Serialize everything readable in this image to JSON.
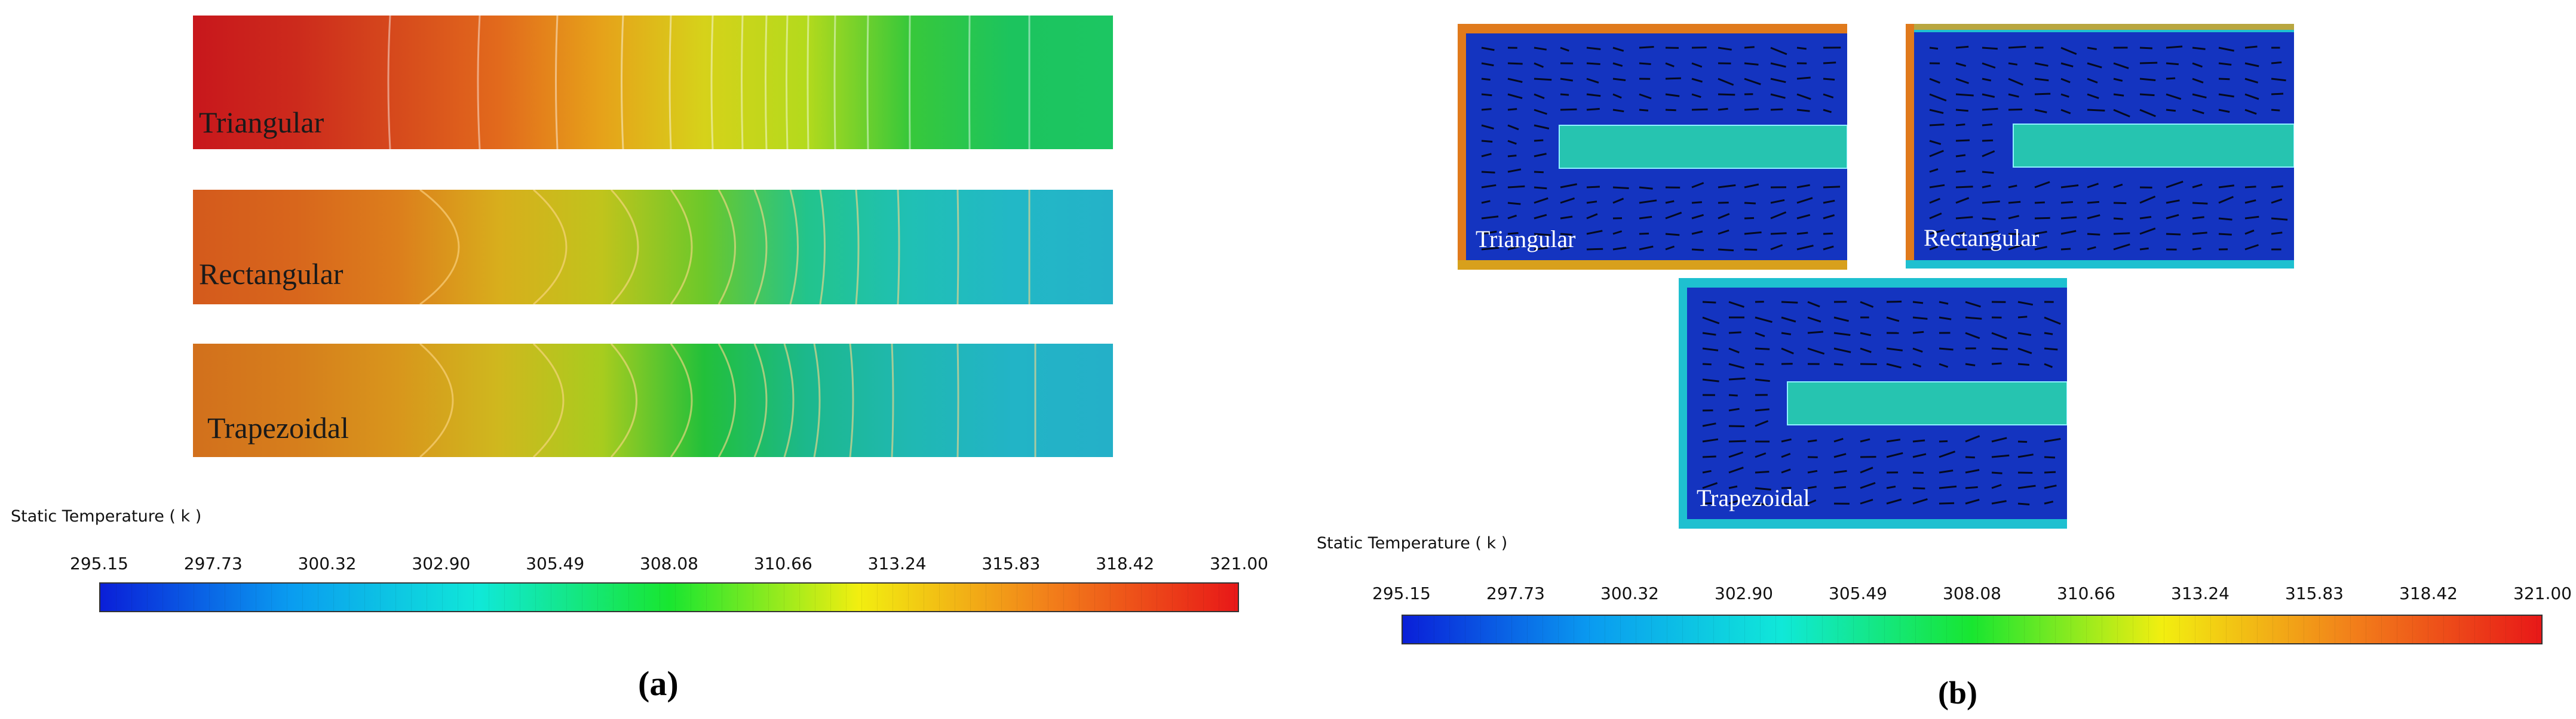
{
  "colors": {
    "scale": [
      "#0a1fd8",
      "#0a9cf0",
      "#10e8d8",
      "#18e630",
      "#f2ee10",
      "#f2801a",
      "#e81818"
    ],
    "strip_triangular": [
      "#c8171c",
      "#cc2a1c",
      "#d64a1c",
      "#e26a1c",
      "#e6a21a",
      "#d6d21a",
      "#b4da1c",
      "#38c83a",
      "#1cc45e",
      "#1cc662"
    ],
    "strip_rectangular": [
      "#d45a1c",
      "#d8661c",
      "#dc7e1c",
      "#d8ae1c",
      "#c0c41c",
      "#6cc82a",
      "#22c48c",
      "#20c0b4",
      "#22b8c6",
      "#24b2c8"
    ],
    "strip_trapezoidal": [
      "#d2701c",
      "#d67e1c",
      "#d8961c",
      "#cfb81e",
      "#a8cc1e",
      "#22c03a",
      "#1cb88c",
      "#20b8b2",
      "#22b4c6",
      "#24b0c8"
    ],
    "panel_body": "#1434c0",
    "fin": "#26c4b0"
  },
  "panel_a": {
    "strips": [
      {
        "label": "Triangular"
      },
      {
        "label": "Rectangular"
      },
      {
        "label": "Trapezoidal"
      }
    ],
    "colorbar": {
      "title": "Static Temperature ( k )",
      "ticks": [
        "295.15",
        "297.73",
        "300.32",
        "302.90",
        "305.49",
        "308.08",
        "310.66",
        "313.24",
        "315.83",
        "318.42",
        "321.00"
      ]
    },
    "caption": "(a)"
  },
  "panel_b": {
    "panels": [
      {
        "label": "Triangular"
      },
      {
        "label": "Rectangular"
      },
      {
        "label": "Trapezoidal"
      }
    ],
    "colorbar": {
      "title": "Static Temperature ( k )",
      "ticks": [
        "295.15",
        "297.73",
        "300.32",
        "302.90",
        "305.49",
        "308.08",
        "310.66",
        "313.24",
        "315.83",
        "318.42",
        "321.00"
      ]
    },
    "caption": "(b)"
  }
}
